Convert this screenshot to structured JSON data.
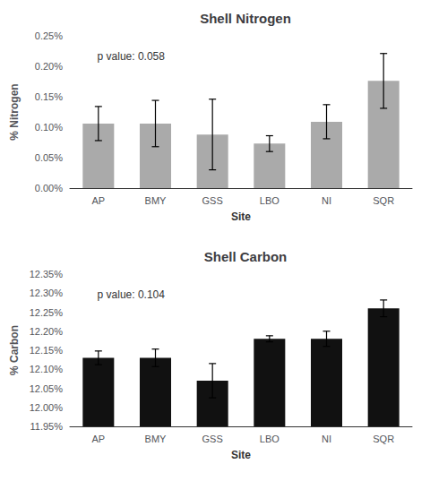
{
  "chart_data": [
    {
      "type": "bar",
      "title": "Shell Nitrogen",
      "xlabel": "Site",
      "ylabel": "% Nitrogen",
      "categories": [
        "AP",
        "BMY",
        "GSS",
        "LBO",
        "NI",
        "SQR"
      ],
      "values": [
        0.106,
        0.106,
        0.088,
        0.073,
        0.109,
        0.176
      ],
      "errors": [
        0.028,
        0.038,
        0.058,
        0.013,
        0.028,
        0.045
      ],
      "color": "#aaaaaa",
      "ylim": [
        0.0,
        0.25
      ],
      "yticks": [
        {
          "value": 0.0,
          "label": "0.00%"
        },
        {
          "value": 0.05,
          "label": "0.05%"
        },
        {
          "value": 0.1,
          "label": "0.10%"
        },
        {
          "value": 0.15,
          "label": "0.15%"
        },
        {
          "value": 0.2,
          "label": "0.20%"
        },
        {
          "value": 0.25,
          "label": "0.25%"
        }
      ],
      "annotations": [
        "p value: 0.058"
      ],
      "grid": false
    },
    {
      "type": "bar",
      "title": "Shell Carbon",
      "xlabel": "Site",
      "ylabel": "% Carbon",
      "categories": [
        "AP",
        "BMY",
        "GSS",
        "LBO",
        "NI",
        "SQR"
      ],
      "values": [
        12.13,
        12.13,
        12.07,
        12.18,
        12.18,
        12.26
      ],
      "errors": [
        0.018,
        0.023,
        0.045,
        0.008,
        0.02,
        0.022
      ],
      "color": "#111111",
      "ylim": [
        11.95,
        12.35
      ],
      "yticks": [
        {
          "value": 11.95,
          "label": "11.95%"
        },
        {
          "value": 12.0,
          "label": "12.00%"
        },
        {
          "value": 12.05,
          "label": "12.05%"
        },
        {
          "value": 12.1,
          "label": "12.10%"
        },
        {
          "value": 12.15,
          "label": "12.15%"
        },
        {
          "value": 12.2,
          "label": "12.20%"
        },
        {
          "value": 12.25,
          "label": "12.25%"
        },
        {
          "value": 12.3,
          "label": "12.30%"
        },
        {
          "value": 12.35,
          "label": "12.35%"
        }
      ],
      "annotations": [
        "p value: 0.104"
      ],
      "grid": false
    }
  ]
}
